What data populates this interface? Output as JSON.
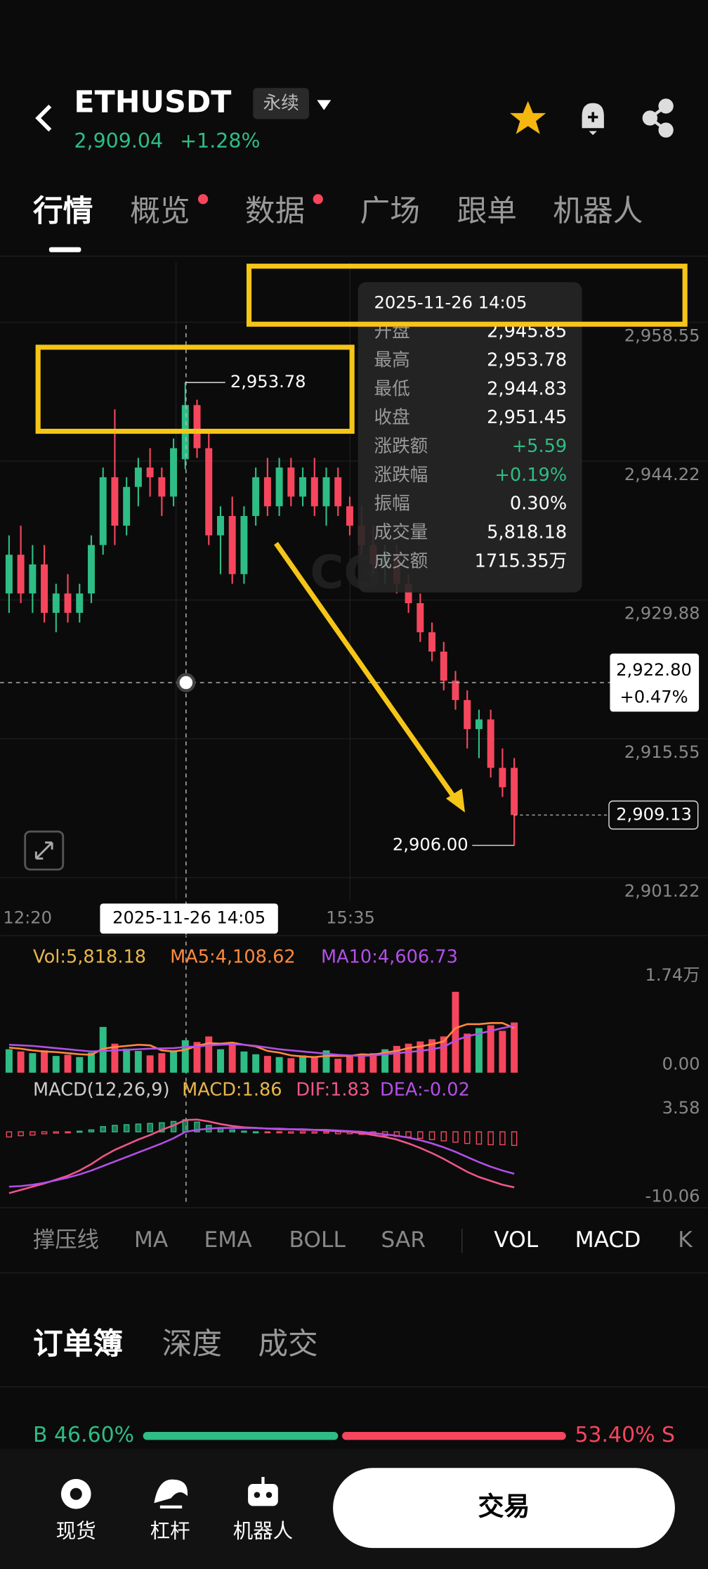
{
  "header": {
    "symbol": "ETHUSDT",
    "contract": "永续",
    "price": "2,909.04",
    "change": "+1.28%"
  },
  "tabs": [
    "行情",
    "概览",
    "数据",
    "广场",
    "跟单",
    "机器人"
  ],
  "chart": {
    "type": "candlestick",
    "up_color": "#2ebd85",
    "down_color": "#f6465d",
    "open": [
      2932,
      2936,
      2932,
      2935,
      2930,
      2932,
      2930,
      2932,
      2937,
      2944,
      2939,
      2943,
      2945,
      2944,
      2942,
      2945.85,
      2951.45,
      2947,
      2938,
      2940,
      2934,
      2940,
      2944,
      2941,
      2945,
      2942,
      2944,
      2941,
      2944,
      2941,
      2939,
      2937,
      2935,
      2936,
      2933,
      2931,
      2928,
      2926,
      2923,
      2921,
      2918,
      2919,
      2914,
      2914
    ],
    "high": [
      2938,
      2939,
      2937,
      2937,
      2933,
      2934,
      2933,
      2938,
      2945,
      2951,
      2944,
      2946,
      2947,
      2945,
      2948,
      2953.78,
      2952,
      2949,
      2941,
      2942,
      2941,
      2945,
      2946,
      2946,
      2946,
      2945,
      2946,
      2945,
      2945,
      2942,
      2941,
      2939,
      2937,
      2937,
      2934,
      2932,
      2929,
      2927,
      2924,
      2922,
      2920,
      2920,
      2916,
      2915
    ],
    "low": [
      2930,
      2931,
      2930,
      2929,
      2928,
      2929,
      2929,
      2931,
      2936,
      2937,
      2938,
      2941,
      2942,
      2940,
      2941,
      2944.83,
      2946,
      2937,
      2934,
      2933,
      2933,
      2939,
      2940,
      2940,
      2941,
      2941,
      2940,
      2939,
      2940,
      2938,
      2936,
      2934,
      2933,
      2932,
      2930,
      2927,
      2925,
      2922,
      2920,
      2916,
      2915,
      2913,
      2911,
      2906
    ],
    "close": [
      2936,
      2932,
      2935,
      2930,
      2932,
      2930,
      2932,
      2937,
      2944,
      2939,
      2943,
      2945,
      2944,
      2942,
      2947,
      2951.45,
      2947,
      2938,
      2940,
      2934,
      2940,
      2944,
      2941,
      2945,
      2942,
      2944,
      2941,
      2944,
      2941,
      2939,
      2937,
      2935,
      2936,
      2933,
      2931,
      2928,
      2926,
      2923,
      2921,
      2918,
      2919,
      2914,
      2912,
      2909.13
    ],
    "ylim": [
      2900.3,
      2966.2
    ],
    "yticks": [
      {
        "value": 2958.55,
        "label": "2,958.55"
      },
      {
        "value": 2944.22,
        "label": "2,944.22"
      },
      {
        "value": 2929.88,
        "label": "2,929.88"
      },
      {
        "value": 2915.55,
        "label": "2,915.55"
      },
      {
        "value": 2901.22,
        "label": "2,901.22"
      }
    ],
    "x_labels": [
      "12:20",
      "15:35"
    ],
    "cursor_time": "2025-11-26 14:05",
    "high_label": "2,953.78",
    "low_label": "2,906.00",
    "cursor": {
      "value": 2922.8,
      "label": "2,922.80",
      "change": "+0.47%"
    },
    "last_price": {
      "value": 2909.13,
      "label": "2,909.13"
    },
    "tooltip": {
      "time": "2025-11-26 14:05",
      "rows": [
        {
          "label": "开盘",
          "value": "2,945.85"
        },
        {
          "label": "最高",
          "value": "2,953.78"
        },
        {
          "label": "最低",
          "value": "2,944.83"
        },
        {
          "label": "收盘",
          "value": "2,951.45"
        },
        {
          "label": "涨跌额",
          "value": "+5.59"
        },
        {
          "label": "涨跌幅",
          "value": "+0.19%"
        },
        {
          "label": "振幅",
          "value": "0.30%"
        },
        {
          "label": "成交量",
          "value": "5,818.18"
        },
        {
          "label": "成交额",
          "value": "1715.35万"
        }
      ]
    }
  },
  "volume": {
    "legend": {
      "vol": "Vol:5,818.18",
      "ma5": "MA5:4,108.62",
      "ma10": "MA10:4,606.73"
    },
    "values": [
      4200,
      3800,
      3500,
      4000,
      3000,
      3200,
      2800,
      3600,
      8200,
      5200,
      4300,
      3900,
      3100,
      3500,
      4000,
      5818.18,
      5500,
      6500,
      4200,
      5200,
      3800,
      3300,
      3000,
      2800,
      2600,
      3100,
      2700,
      4000,
      2500,
      2900,
      3300,
      3500,
      4200,
      4800,
      5200,
      5600,
      6000,
      6500,
      14500,
      7000,
      8000,
      8500,
      7500,
      9000
    ],
    "ma5": [
      4500,
      4300,
      4000,
      3800,
      3700,
      3500,
      3300,
      3200,
      4300,
      4600,
      4800,
      5000,
      4900,
      4000,
      3800,
      4108.62,
      4800,
      5300,
      5200,
      5400,
      5000,
      4700,
      3900,
      3600,
      3100,
      2900,
      2800,
      3000,
      3000,
      3000,
      3300,
      3200,
      3600,
      3900,
      4400,
      4700,
      5100,
      5600,
      8000,
      8700,
      8700,
      8900,
      8900,
      8000
    ],
    "ma10": [
      5000,
      4900,
      4800,
      4600,
      4400,
      4200,
      4000,
      3800,
      3900,
      4000,
      4100,
      4200,
      4300,
      4350,
      4400,
      4606.73,
      4700,
      4900,
      5000,
      5100,
      5000,
      4800,
      4500,
      4200,
      4000,
      3800,
      3600,
      3400,
      3200,
      3100,
      3000,
      3100,
      3300,
      3500,
      3700,
      3900,
      4200,
      4600,
      5800,
      6500,
      7000,
      7500,
      8000,
      8400
    ],
    "ma5_color": "#ff8a3d",
    "ma10_color": "#b44fe8",
    "ylim": [
      0,
      17400
    ],
    "yticks": [
      {
        "value": 17400,
        "label": "1.74万"
      },
      {
        "value": 0,
        "label": "0.00"
      }
    ]
  },
  "macd": {
    "legend": {
      "name": "MACD(12,26,9)",
      "macd": "MACD:1.86",
      "dif": "DIF:1.83",
      "dea": "DEA:-0.02"
    },
    "hist": [
      -0.8,
      -0.6,
      -0.5,
      -0.3,
      -0.2,
      -0.1,
      0.1,
      0.3,
      0.8,
      1.0,
      1.1,
      1.2,
      1.3,
      1.4,
      1.6,
      1.86,
      1.5,
      1.0,
      0.6,
      0.3,
      0.1,
      0.0,
      -0.1,
      -0.1,
      -0.2,
      -0.2,
      -0.2,
      -0.2,
      -0.3,
      -0.3,
      -0.4,
      -0.5,
      -0.6,
      -0.7,
      -0.8,
      -1.0,
      -1.2,
      -1.4,
      -1.6,
      -1.8,
      -1.9,
      -2.0,
      -2.0,
      -2.1
    ],
    "dif": [
      -9.5,
      -9,
      -8.5,
      -8,
      -7.4,
      -6.8,
      -6,
      -5,
      -3.8,
      -2.8,
      -2,
      -1.2,
      -0.5,
      0.3,
      1.0,
      1.83,
      1.9,
      1.6,
      1.2,
      0.9,
      0.7,
      0.6,
      0.5,
      0.4,
      0.4,
      0.3,
      0.3,
      0.2,
      0.1,
      0,
      -0.2,
      -0.5,
      -0.8,
      -1.2,
      -1.8,
      -2.5,
      -3.3,
      -4.2,
      -5.2,
      -6.2,
      -7,
      -7.6,
      -8.2,
      -8.6
    ],
    "dea": [
      -8.5,
      -8.4,
      -8.2,
      -7.9,
      -7.5,
      -7.1,
      -6.6,
      -6,
      -5.3,
      -4.6,
      -3.9,
      -3.2,
      -2.5,
      -1.8,
      -1,
      -0.02,
      0.3,
      0.5,
      0.6,
      0.6,
      0.6,
      0.6,
      0.5,
      0.5,
      0.4,
      0.4,
      0.3,
      0.3,
      0.2,
      0.1,
      0,
      -0.2,
      -0.4,
      -0.6,
      -0.9,
      -1.3,
      -1.8,
      -2.4,
      -3.1,
      -3.9,
      -4.7,
      -5.4,
      -6,
      -6.5
    ],
    "dif_color": "#f0568a",
    "dea_color": "#b44fe8",
    "ylim": [
      -10.06,
      3.58
    ],
    "yticks": [
      {
        "value": 3.58,
        "label": "3.58"
      },
      {
        "value": -10.06,
        "label": "-10.06"
      }
    ]
  },
  "indicators": [
    "撑压线",
    "MA",
    "EMA",
    "BOLL",
    "SAR",
    "VOL",
    "MACD",
    "K"
  ],
  "orderbook_tabs": [
    "订单簿",
    "深度",
    "成交"
  ],
  "ratio": {
    "buy": 46.6,
    "buy_label": "B 46.60%",
    "sell": 53.4,
    "sell_label": "53.40% S"
  },
  "nav": [
    "现货",
    "杠杆",
    "机器人"
  ],
  "trade_button": "交易"
}
